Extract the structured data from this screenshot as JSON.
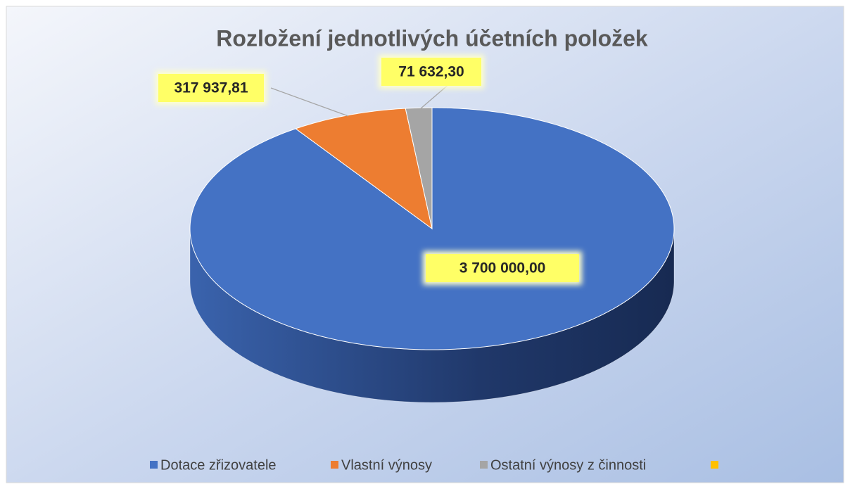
{
  "chart_data": {
    "type": "pie",
    "title": "Rozložení jednotlivých účetních položek",
    "categories": [
      "Dotace zřizovatele",
      "Vlastní výnosy",
      "Ostatní výnosy z činnosti",
      null
    ],
    "values": [
      3700000,
      317937.81,
      71632.3,
      0
    ],
    "value_labels": [
      "3 700 000,00",
      "317 937,81",
      "71 632,30",
      null
    ],
    "colors": [
      "#4472c4",
      "#ed7d31",
      "#a5a5a5",
      "#ffc000"
    ],
    "legend": "bottom"
  }
}
